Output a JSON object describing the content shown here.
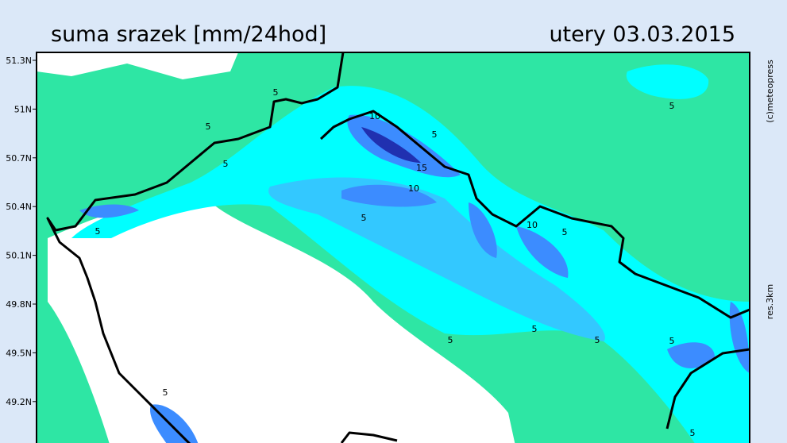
{
  "header": {
    "title": "suma srazek [mm/24hod]",
    "date": "utery 03.03.2015"
  },
  "latitude_labels": [
    "51.3N",
    "51N",
    "50.7N",
    "50.4N",
    "50.1N",
    "49.8N",
    "49.5N",
    "49.2N"
  ],
  "credit": "(c)meteopress",
  "resolution": "res.3km",
  "contour_labels": [
    "5",
    "5",
    "5",
    "10",
    "5",
    "15",
    "10",
    "5",
    "5",
    "10",
    "5",
    "5",
    "5",
    "5",
    "5",
    "5",
    "5",
    "5"
  ]
}
